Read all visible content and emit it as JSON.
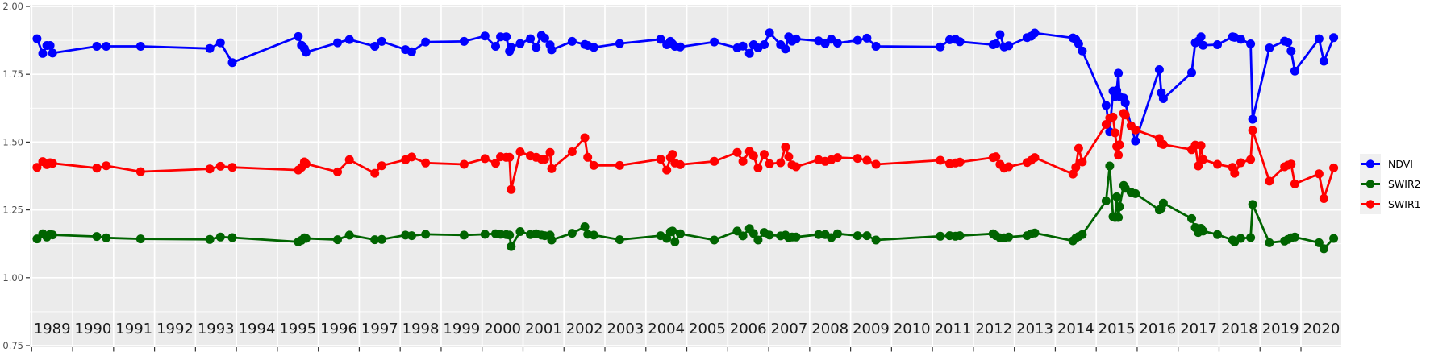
{
  "chart_data": {
    "type": "line",
    "title": "",
    "xlabel": "",
    "ylabel": "",
    "x_domain": [
      1989,
      2021
    ],
    "ylim": [
      0.75,
      2.0
    ],
    "grid": "white major+minor horizontal, white vertical per year, on gray panel",
    "legend_position": "right",
    "panel_color": "#EBEBEB",
    "grid_color": "#FFFFFF",
    "tick_color": "#333333",
    "y_ticks": [
      {
        "label": "2.00",
        "value": 2.0
      },
      {
        "label": "1.75",
        "value": 1.75
      },
      {
        "label": "1.50",
        "value": 1.5
      },
      {
        "label": "1.25",
        "value": 1.25
      },
      {
        "label": "1.00",
        "value": 1.0
      },
      {
        "label": "0.75",
        "value": 0.75
      }
    ],
    "y_minor_values": [
      1.875,
      1.625,
      1.375,
      1.125,
      0.875
    ],
    "x_tick_labels": [
      "1989",
      "1990",
      "1991",
      "1992",
      "1993",
      "1994",
      "1995",
      "1996",
      "1997",
      "1998",
      "1999",
      "2000",
      "2001",
      "2002",
      "2003",
      "2004",
      "2005",
      "2006",
      "2007",
      "2008",
      "2009",
      "2010",
      "2011",
      "2012",
      "2013",
      "2014",
      "2015",
      "2016",
      "2017",
      "2018",
      "2019",
      "2020"
    ],
    "x": [
      1989.13,
      1989.27,
      1989.37,
      1989.45,
      1989.51,
      1990.59,
      1990.82,
      1991.66,
      1993.35,
      1993.61,
      1993.9,
      1995.51,
      1995.59,
      1995.66,
      1995.7,
      1996.47,
      1996.76,
      1997.38,
      1997.55,
      1998.13,
      1998.28,
      1998.62,
      1999.56,
      2000.07,
      2000.33,
      2000.45,
      2000.59,
      2000.67,
      2000.71,
      2000.93,
      2001.18,
      2001.32,
      2001.45,
      2001.53,
      2001.66,
      2001.7,
      2002.2,
      2002.51,
      2002.58,
      2002.73,
      2003.36,
      2004.36,
      2004.51,
      2004.6,
      2004.65,
      2004.71,
      2004.84,
      2005.67,
      2006.23,
      2006.37,
      2006.53,
      2006.63,
      2006.74,
      2006.89,
      2007.02,
      2007.29,
      2007.41,
      2007.49,
      2007.57,
      2007.67,
      2008.22,
      2008.38,
      2008.53,
      2008.68,
      2009.17,
      2009.4,
      2009.62,
      2011.19,
      2011.42,
      2011.56,
      2011.67,
      2012.48,
      2012.55,
      2012.65,
      2012.75,
      2012.86,
      2013.31,
      2013.41,
      2013.5,
      2014.43,
      2014.5,
      2014.57,
      2014.66,
      2015.24,
      2015.33,
      2015.41,
      2015.46,
      2015.5,
      2015.54,
      2015.57,
      2015.67,
      2015.71,
      2015.85,
      2015.96,
      2016.54,
      2016.59,
      2016.64,
      2017.33,
      2017.42,
      2017.49,
      2017.56,
      2017.61,
      2017.96,
      2018.33,
      2018.38,
      2018.53,
      2018.77,
      2018.82,
      2019.23,
      2019.6,
      2019.68,
      2019.76,
      2019.85,
      2020.44,
      2020.56,
      2020.8
    ],
    "series": [
      {
        "name": "NDVI",
        "color": "#0000FF",
        "values": [
          1.881,
          1.827,
          1.856,
          1.856,
          1.828,
          1.853,
          1.853,
          1.853,
          1.845,
          1.866,
          1.793,
          1.889,
          1.857,
          1.845,
          1.831,
          1.866,
          1.878,
          1.853,
          1.871,
          1.841,
          1.833,
          1.869,
          1.871,
          1.891,
          1.853,
          1.888,
          1.888,
          1.835,
          1.849,
          1.863,
          1.881,
          1.849,
          1.893,
          1.883,
          1.858,
          1.84,
          1.871,
          1.86,
          1.856,
          1.849,
          1.863,
          1.879,
          1.859,
          1.871,
          1.862,
          1.853,
          1.851,
          1.869,
          1.847,
          1.854,
          1.827,
          1.859,
          1.847,
          1.859,
          1.903,
          1.859,
          1.843,
          1.888,
          1.872,
          1.88,
          1.873,
          1.863,
          1.879,
          1.865,
          1.875,
          1.883,
          1.853,
          1.851,
          1.877,
          1.879,
          1.87,
          1.859,
          1.862,
          1.896,
          1.851,
          1.855,
          1.885,
          1.89,
          1.902,
          1.884,
          1.878,
          1.862,
          1.836,
          1.635,
          1.538,
          1.688,
          1.668,
          1.69,
          1.754,
          1.668,
          1.662,
          1.645,
          1.56,
          1.504,
          1.767,
          1.682,
          1.66,
          1.756,
          1.866,
          1.872,
          1.888,
          1.857,
          1.859,
          1.888,
          1.886,
          1.879,
          1.862,
          1.584,
          1.847,
          1.872,
          1.868,
          1.836,
          1.762,
          1.881,
          1.798,
          1.885
        ]
      },
      {
        "name": "SWIR2",
        "color": "#006400",
        "values": [
          1.143,
          1.162,
          1.15,
          1.16,
          1.158,
          1.152,
          1.147,
          1.143,
          1.141,
          1.15,
          1.148,
          1.132,
          1.138,
          1.147,
          1.145,
          1.14,
          1.157,
          1.14,
          1.141,
          1.157,
          1.155,
          1.16,
          1.157,
          1.16,
          1.162,
          1.16,
          1.159,
          1.157,
          1.115,
          1.17,
          1.159,
          1.162,
          1.157,
          1.155,
          1.157,
          1.139,
          1.164,
          1.188,
          1.16,
          1.157,
          1.14,
          1.155,
          1.145,
          1.169,
          1.172,
          1.132,
          1.162,
          1.139,
          1.172,
          1.154,
          1.181,
          1.163,
          1.139,
          1.167,
          1.157,
          1.154,
          1.157,
          1.148,
          1.15,
          1.15,
          1.159,
          1.159,
          1.148,
          1.162,
          1.155,
          1.155,
          1.139,
          1.153,
          1.155,
          1.153,
          1.155,
          1.162,
          1.155,
          1.147,
          1.147,
          1.15,
          1.155,
          1.162,
          1.165,
          1.136,
          1.146,
          1.152,
          1.159,
          1.283,
          1.412,
          1.225,
          1.222,
          1.298,
          1.222,
          1.262,
          1.34,
          1.33,
          1.315,
          1.31,
          1.25,
          1.256,
          1.275,
          1.218,
          1.185,
          1.167,
          1.182,
          1.172,
          1.159,
          1.139,
          1.132,
          1.145,
          1.148,
          1.27,
          1.129,
          1.135,
          1.141,
          1.147,
          1.15,
          1.129,
          1.107,
          1.145
        ]
      },
      {
        "name": "SWIR1",
        "color": "#FF0000",
        "values": [
          1.407,
          1.428,
          1.417,
          1.424,
          1.422,
          1.404,
          1.413,
          1.391,
          1.401,
          1.411,
          1.407,
          1.397,
          1.407,
          1.427,
          1.42,
          1.39,
          1.435,
          1.385,
          1.413,
          1.435,
          1.445,
          1.423,
          1.418,
          1.439,
          1.422,
          1.446,
          1.444,
          1.444,
          1.325,
          1.464,
          1.449,
          1.444,
          1.437,
          1.437,
          1.462,
          1.402,
          1.464,
          1.516,
          1.444,
          1.414,
          1.414,
          1.437,
          1.397,
          1.443,
          1.455,
          1.423,
          1.417,
          1.429,
          1.462,
          1.429,
          1.466,
          1.449,
          1.405,
          1.455,
          1.42,
          1.424,
          1.482,
          1.446,
          1.416,
          1.409,
          1.435,
          1.429,
          1.435,
          1.443,
          1.44,
          1.433,
          1.418,
          1.433,
          1.42,
          1.423,
          1.426,
          1.443,
          1.446,
          1.418,
          1.404,
          1.409,
          1.425,
          1.433,
          1.443,
          1.382,
          1.407,
          1.477,
          1.427,
          1.565,
          1.589,
          1.592,
          1.534,
          1.484,
          1.452,
          1.49,
          1.606,
          1.6,
          1.56,
          1.545,
          1.513,
          1.494,
          1.491,
          1.472,
          1.489,
          1.412,
          1.487,
          1.436,
          1.418,
          1.407,
          1.385,
          1.424,
          1.436,
          1.543,
          1.356,
          1.409,
          1.415,
          1.419,
          1.346,
          1.383,
          1.292,
          1.405
        ]
      }
    ],
    "legend": [
      {
        "label": "NDVI",
        "color": "#0000FF"
      },
      {
        "label": "SWIR2",
        "color": "#006400"
      },
      {
        "label": "SWIR1",
        "color": "#FF0000"
      }
    ]
  }
}
